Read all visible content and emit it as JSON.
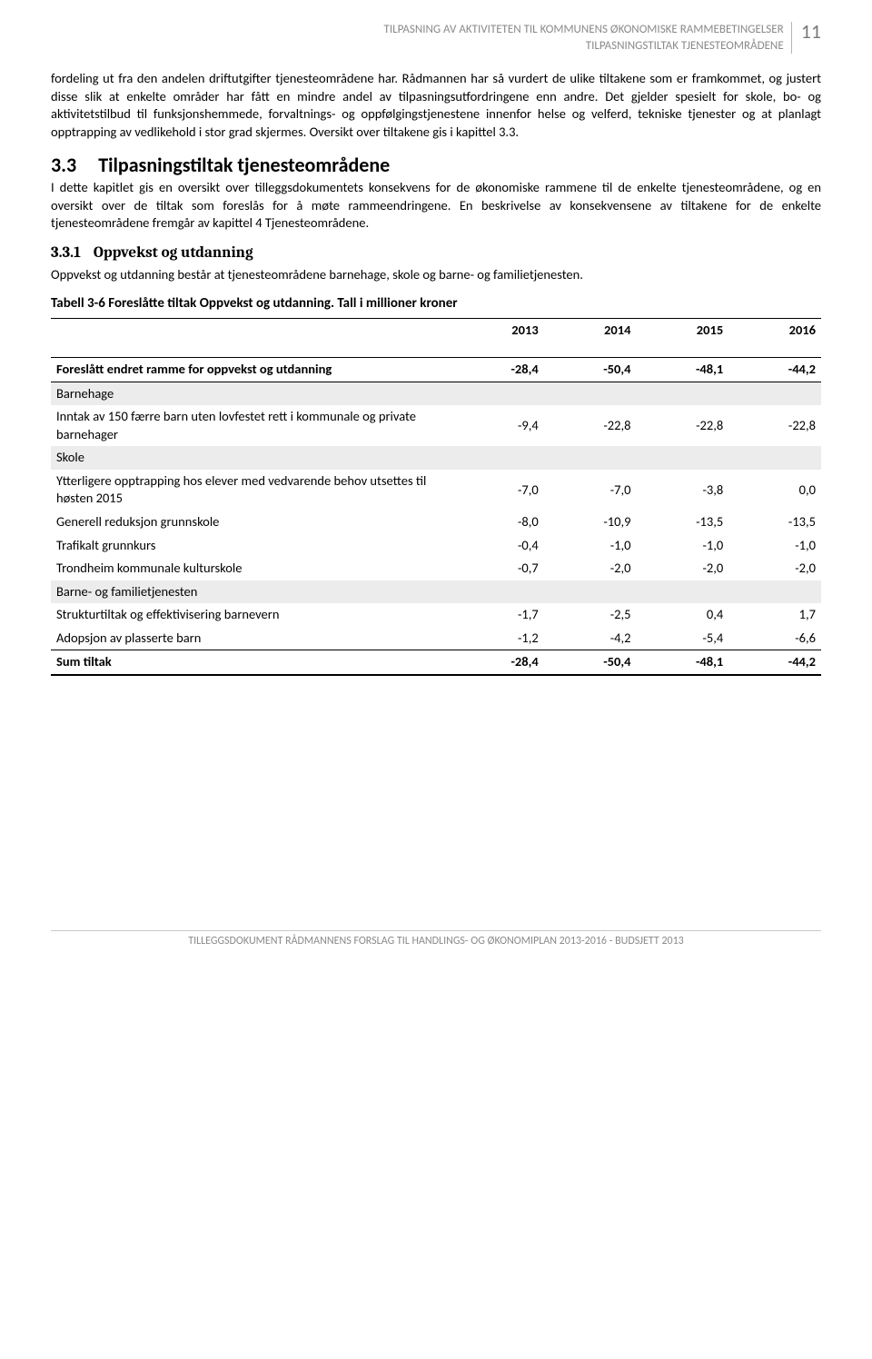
{
  "header": {
    "line1": "TILPASNING AV AKTIVITETEN TIL KOMMUNENS ØKONOMISKE RAMMEBETINGELSER",
    "line2": "TILPASNINGSTILTAK TJENESTEOMRÅDENE",
    "page_number": "11"
  },
  "paragraphs": {
    "p1": "fordeling ut fra den andelen driftutgifter tjenesteområdene har. Rådmannen har så vurdert de ulike tiltakene som er framkommet, og justert disse slik at enkelte områder har fått en mindre andel av tilpasningsutfordringene enn andre. Det gjelder spesielt for skole, bo- og aktivitetstilbud til funksjonshemmede,  forvaltnings- og oppfølgingstjenestene innenfor helse og velferd, tekniske tjenester og at planlagt opptrapping av vedlikehold i stor grad skjermes. Oversikt over tiltakene gis i kapittel 3.3.",
    "section_num": "3.3",
    "section_title": "Tilpasningstiltak tjenesteområdene",
    "p2": "I dette kapitlet gis en oversikt over tilleggsdokumentets konsekvens for de økonomiske rammene til de enkelte tjenesteområdene, og en oversikt over de tiltak som foreslås for å møte rammeendringene. En beskrivelse av konsekvensene av tiltakene for de enkelte tjenesteområdene fremgår av kapittel 4 Tjenesteområdene.",
    "subsection_num": "3.3.1",
    "subsection_title": "Oppvekst og utdanning",
    "p3": "Oppvekst og utdanning består at tjenesteområdene barnehage, skole og barne- og familietjenesten."
  },
  "table": {
    "caption": "Tabell 3-6  Foreslåtte tiltak Oppvekst og utdanning. Tall i millioner kroner",
    "columns": [
      "",
      "2013",
      "2014",
      "2015",
      "2016"
    ],
    "rows": [
      {
        "label": "Foreslått endret ramme for oppvekst og utdanning",
        "v": [
          "-28,4",
          "-50,4",
          "-48,1",
          "-44,2"
        ],
        "style": "bold top-border bot-border"
      },
      {
        "label": "Barnehage",
        "v": [
          "",
          "",
          "",
          ""
        ],
        "style": "cat"
      },
      {
        "label": "Inntak av 150 færre barn uten lovfestet rett i kommunale og private barnehager",
        "v": [
          "-9,4",
          "-22,8",
          "-22,8",
          "-22,8"
        ],
        "style": ""
      },
      {
        "label": "Skole",
        "v": [
          "",
          "",
          "",
          ""
        ],
        "style": "cat"
      },
      {
        "label": "Ytterligere opptrapping hos elever med vedvarende behov utsettes til høsten 2015",
        "v": [
          "-7,0",
          "-7,0",
          "-3,8",
          "0,0"
        ],
        "style": ""
      },
      {
        "label": "Generell reduksjon grunnskole",
        "v": [
          "-8,0",
          "-10,9",
          "-13,5",
          "-13,5"
        ],
        "style": ""
      },
      {
        "label": "Trafikalt grunnkurs",
        "v": [
          "-0,4",
          "-1,0",
          "-1,0",
          "-1,0"
        ],
        "style": ""
      },
      {
        "label": "Trondheim kommunale kulturskole",
        "v": [
          "-0,7",
          "-2,0",
          "-2,0",
          "-2,0"
        ],
        "style": ""
      },
      {
        "label": "Barne- og familietjenesten",
        "v": [
          "",
          "",
          "",
          ""
        ],
        "style": "cat"
      },
      {
        "label": "Strukturtiltak og effektivisering barnevern",
        "v": [
          "-1,7",
          "-2,5",
          "0,4",
          "1,7"
        ],
        "style": ""
      },
      {
        "label": "Adopsjon av plasserte barn",
        "v": [
          "-1,2",
          "-4,2",
          "-5,4",
          "-6,6"
        ],
        "style": ""
      },
      {
        "label": "Sum tiltak",
        "v": [
          "-28,4",
          "-50,4",
          "-48,1",
          "-44,2"
        ],
        "style": "bold top-border thick-bot"
      }
    ]
  },
  "footer": "TILLEGGSDOKUMENT  RÅDMANNENS FORSLAG TIL HANDLINGS- OG ØKONOMIPLAN 2013-2016 - BUDSJETT 2013"
}
